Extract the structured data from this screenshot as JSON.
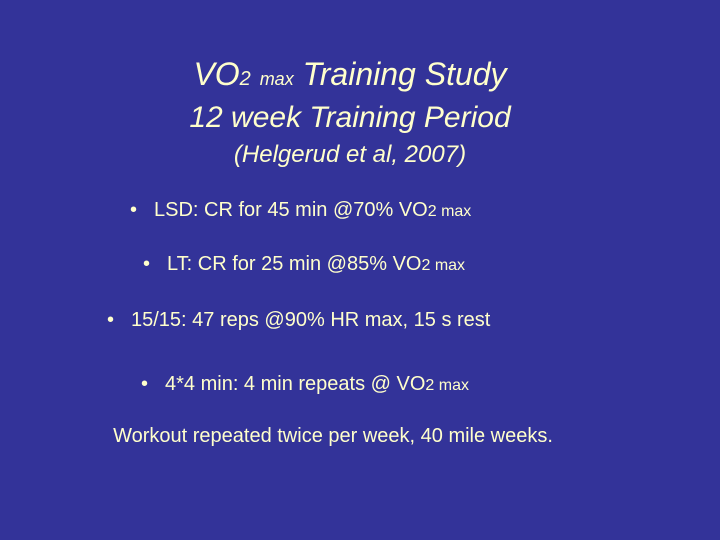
{
  "title": {
    "line1_main": "VO",
    "line1_sub": "2",
    "line1_max": "max",
    "line1_rest": "Training Study",
    "line2": "12 week Training Period",
    "line3": "(Helgerud et al, 2007)"
  },
  "bullets": [
    {
      "bullet": "•",
      "text": "LSD: CR for 45 min @70% VO",
      "sub": "2 max"
    },
    {
      "bullet": "•",
      "text": "LT: CR for 25 min @85% VO",
      "sub": "2 max"
    },
    {
      "bullet": "•",
      "text": "15/15: 47 reps @90% HR max, 15 s rest",
      "sub": ""
    },
    {
      "bullet": "•",
      "text": "4*4 min: 4 min repeats @ VO",
      "sub": "2 max"
    }
  ],
  "footer": "Workout repeated twice per week, 40 mile weeks."
}
